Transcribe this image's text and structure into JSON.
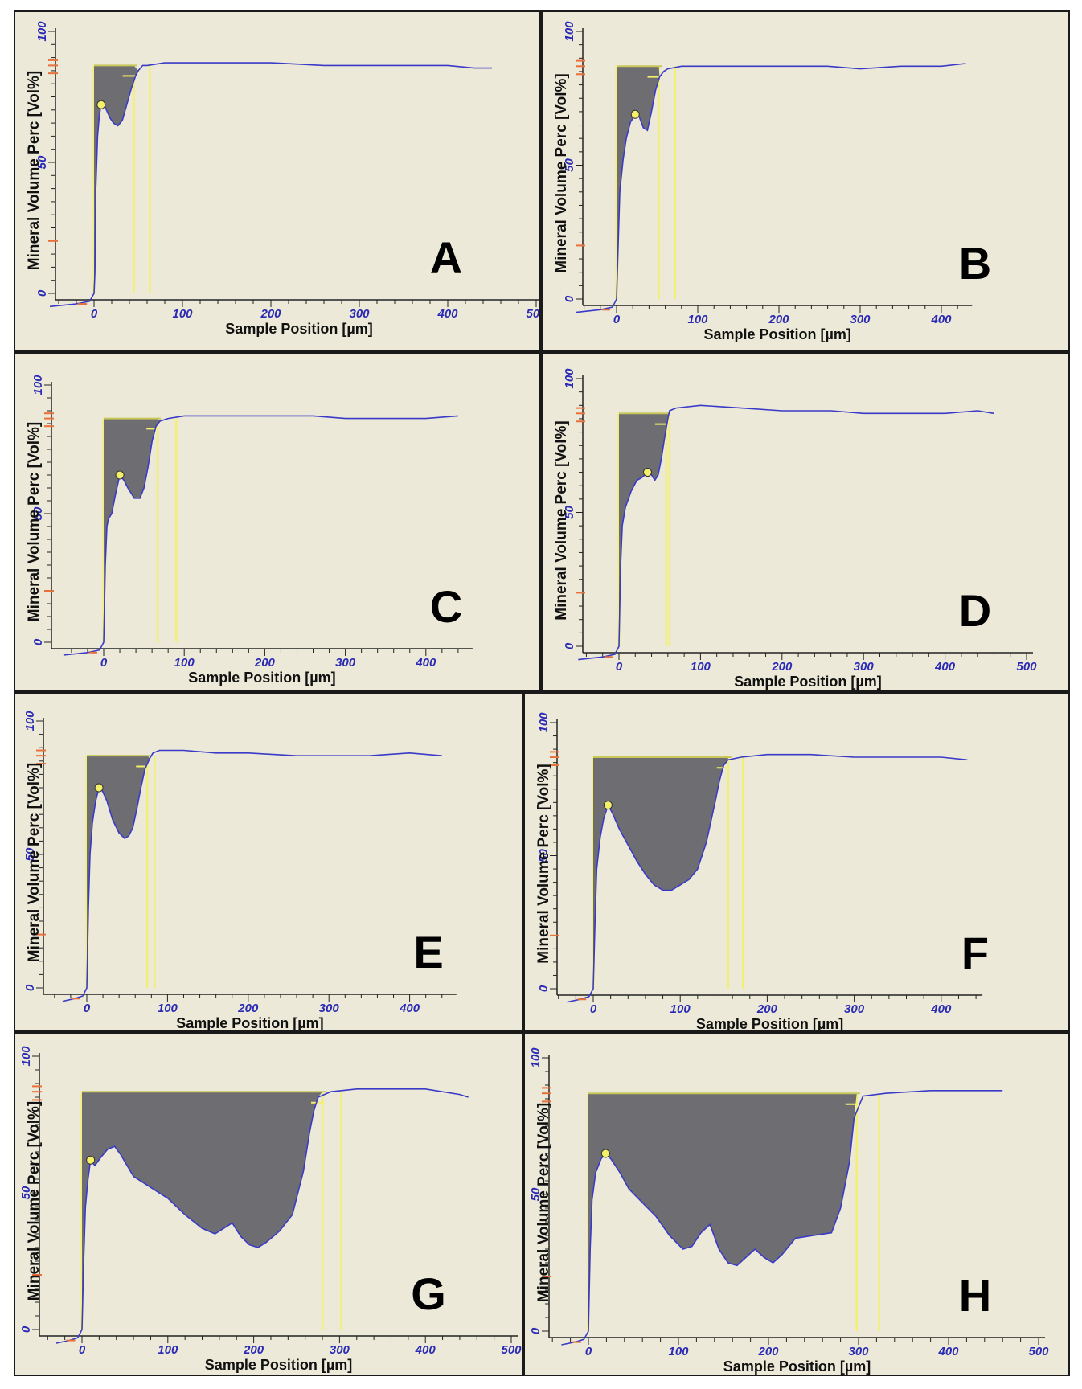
{
  "figure": {
    "colors": {
      "background": "#ece9d8",
      "curve": "#3a3ac8",
      "fill": "#6e6e72",
      "marker": "#f4f06a",
      "orange": "#e8703a",
      "axis": "#222222",
      "tick_text": "#2a2ab5"
    }
  },
  "chart_data": [
    {
      "type": "line",
      "panel_label": "A",
      "xlabel": "Sample Position [µm]",
      "ylabel": "Mineral Volume Perc [Vol%]",
      "xlim": [
        -50,
        500
      ],
      "ylim": [
        0,
        100
      ],
      "xticks": [
        "0",
        "100",
        "200",
        "300",
        "400",
        "500"
      ],
      "yticks": [
        "0",
        "50",
        "100"
      ],
      "sound_level": 87,
      "peak": {
        "x": 8,
        "y": 72
      },
      "series": [
        {
          "name": "mineral-volume",
          "x": [
            -50,
            -20,
            -5,
            0,
            1,
            2,
            4,
            6,
            8,
            10,
            14,
            18,
            22,
            27,
            32,
            37,
            42,
            47,
            50,
            55,
            60,
            80,
            120,
            160,
            200,
            260,
            300,
            350,
            400,
            430,
            450
          ],
          "y": [
            -5,
            -4,
            -3,
            0,
            8,
            40,
            60,
            68,
            72,
            73,
            70,
            67,
            65,
            64,
            66,
            72,
            78,
            83,
            85,
            87,
            87,
            88,
            88,
            88,
            88,
            87,
            87,
            87,
            87,
            86,
            86
          ]
        }
      ],
      "reference_lines_x": [
        0,
        45,
        63
      ]
    },
    {
      "type": "line",
      "panel_label": "B",
      "xlabel": "Sample Position [µm]",
      "ylabel": "Mineral Volume Perc [Vol%]",
      "xlim": [
        -50,
        430
      ],
      "ylim": [
        0,
        100
      ],
      "xticks": [
        "0",
        "100",
        "200",
        "300",
        "400"
      ],
      "yticks": [
        "0",
        "50",
        "100"
      ],
      "sound_level": 87,
      "peak": {
        "x": 23,
        "y": 69
      },
      "series": [
        {
          "name": "mineral-volume",
          "x": [
            -50,
            -20,
            -5,
            0,
            2,
            4,
            8,
            12,
            17,
            23,
            28,
            33,
            38,
            43,
            48,
            53,
            58,
            63,
            80,
            120,
            160,
            200,
            260,
            300,
            350,
            400,
            430
          ],
          "y": [
            -5,
            -4,
            -3,
            0,
            20,
            40,
            52,
            60,
            66,
            69,
            68,
            64,
            63,
            70,
            78,
            83,
            85,
            86,
            87,
            87,
            87,
            87,
            87,
            86,
            87,
            87,
            88
          ]
        }
      ],
      "reference_lines_x": [
        0,
        52,
        72
      ]
    },
    {
      "type": "line",
      "panel_label": "C",
      "xlabel": "Sample Position [µm]",
      "ylabel": "Mineral Volume Perc [Vol%]",
      "xlim": [
        -50,
        450
      ],
      "ylim": [
        0,
        100
      ],
      "xticks": [
        "0",
        "100",
        "200",
        "300",
        "400"
      ],
      "yticks": [
        "0",
        "50",
        "100"
      ],
      "sound_level": 87,
      "peak": {
        "x": 20,
        "y": 65
      },
      "series": [
        {
          "name": "mineral-volume",
          "x": [
            -50,
            -20,
            -5,
            0,
            2,
            4,
            6,
            10,
            15,
            20,
            25,
            30,
            38,
            45,
            50,
            55,
            60,
            65,
            70,
            80,
            100,
            150,
            200,
            260,
            300,
            350,
            400,
            440
          ],
          "y": [
            -5,
            -4,
            -3,
            0,
            30,
            45,
            48,
            50,
            58,
            65,
            63,
            60,
            56,
            56,
            60,
            68,
            78,
            84,
            86,
            87,
            88,
            88,
            88,
            88,
            87,
            87,
            87,
            88
          ]
        }
      ],
      "reference_lines_x": [
        0,
        67,
        90
      ]
    },
    {
      "type": "line",
      "panel_label": "D",
      "xlabel": "Sample Position [µm]",
      "ylabel": "Mineral Volume Perc [Vol%]",
      "xlim": [
        -50,
        500
      ],
      "ylim": [
        0,
        100
      ],
      "xticks": [
        "0",
        "100",
        "200",
        "300",
        "400",
        "500"
      ],
      "yticks": [
        "0",
        "50",
        "100"
      ],
      "sound_level": 87,
      "peak": {
        "x": 35,
        "y": 65
      },
      "series": [
        {
          "name": "mineral-volume",
          "x": [
            -50,
            -20,
            -5,
            0,
            2,
            4,
            8,
            15,
            22,
            28,
            35,
            40,
            44,
            48,
            52,
            56,
            60,
            62,
            70,
            100,
            150,
            200,
            260,
            300,
            350,
            400,
            440,
            460
          ],
          "y": [
            -5,
            -4,
            -3,
            0,
            30,
            45,
            52,
            58,
            62,
            63,
            65,
            64,
            62,
            64,
            70,
            78,
            85,
            88,
            89,
            90,
            89,
            88,
            88,
            87,
            87,
            87,
            88,
            87
          ]
        }
      ],
      "reference_lines_x": [
        0,
        58,
        62
      ]
    },
    {
      "type": "line",
      "panel_label": "E",
      "xlabel": "Sample Position [µm]",
      "ylabel": "Mineral Volume Perc [Vol%]",
      "xlim": [
        -30,
        450
      ],
      "ylim": [
        0,
        100
      ],
      "xticks": [
        "0",
        "100",
        "200",
        "300",
        "400"
      ],
      "yticks": [
        "0",
        "50",
        "100"
      ],
      "sound_level": 87,
      "peak": {
        "x": 15,
        "y": 75
      },
      "series": [
        {
          "name": "mineral-volume",
          "x": [
            -30,
            -15,
            -5,
            0,
            2,
            4,
            7,
            11,
            15,
            19,
            25,
            32,
            40,
            47,
            52,
            57,
            62,
            67,
            72,
            78,
            82,
            90,
            120,
            160,
            200,
            260,
            300,
            350,
            400,
            440
          ],
          "y": [
            -5,
            -4,
            -3,
            0,
            30,
            50,
            62,
            70,
            75,
            74,
            70,
            63,
            58,
            56,
            57,
            60,
            67,
            75,
            82,
            86,
            88,
            89,
            89,
            88,
            88,
            87,
            87,
            87,
            88,
            87
          ]
        }
      ],
      "reference_lines_x": [
        0,
        75,
        84
      ]
    },
    {
      "type": "line",
      "panel_label": "F",
      "xlabel": "Sample Position [µm]",
      "ylabel": "Mineral Volume Perc [Vol%]",
      "xlim": [
        -30,
        440
      ],
      "ylim": [
        0,
        100
      ],
      "xticks": [
        "0",
        "100",
        "200",
        "300",
        "400"
      ],
      "yticks": [
        "0",
        "50",
        "100"
      ],
      "sound_level": 87,
      "peak": {
        "x": 17,
        "y": 69
      },
      "series": [
        {
          "name": "mineral-volume",
          "x": [
            -30,
            -15,
            -5,
            0,
            2,
            4,
            8,
            12,
            17,
            22,
            30,
            40,
            50,
            60,
            70,
            80,
            90,
            100,
            110,
            120,
            130,
            140,
            145,
            150,
            155,
            170,
            200,
            250,
            300,
            350,
            400,
            430
          ],
          "y": [
            -5,
            -4,
            -3,
            0,
            25,
            45,
            57,
            64,
            69,
            66,
            60,
            54,
            48,
            43,
            39,
            37,
            37,
            39,
            41,
            45,
            55,
            70,
            78,
            84,
            86,
            87,
            88,
            88,
            87,
            87,
            87,
            86
          ]
        }
      ],
      "reference_lines_x": [
        0,
        155,
        172
      ]
    },
    {
      "type": "line",
      "panel_label": "G",
      "xlabel": "Sample Position [µm]",
      "ylabel": "Mineral Volume Perc [Vol%]",
      "xlim": [
        -30,
        500
      ],
      "ylim": [
        0,
        100
      ],
      "xticks": [
        "0",
        "100",
        "200",
        "300",
        "400",
        "500"
      ],
      "yticks": [
        "0",
        "50",
        "100"
      ],
      "sound_level": 87,
      "peak": {
        "x": 10,
        "y": 62
      },
      "series": [
        {
          "name": "mineral-volume",
          "x": [
            -30,
            -15,
            -5,
            0,
            2,
            4,
            7,
            10,
            15,
            22,
            30,
            38,
            45,
            60,
            80,
            100,
            120,
            140,
            155,
            165,
            175,
            185,
            195,
            205,
            215,
            230,
            245,
            258,
            265,
            270,
            275,
            290,
            320,
            360,
            400,
            440,
            450
          ],
          "y": [
            -5,
            -4,
            -3,
            0,
            25,
            45,
            55,
            62,
            60,
            63,
            66,
            67,
            64,
            56,
            52,
            48,
            42,
            37,
            35,
            37,
            39,
            34,
            31,
            30,
            32,
            36,
            42,
            58,
            72,
            80,
            85,
            87,
            88,
            88,
            88,
            86,
            85
          ]
        }
      ],
      "reference_lines_x": [
        0,
        280,
        302
      ]
    },
    {
      "type": "line",
      "panel_label": "H",
      "xlabel": "Sample Position [µm]",
      "ylabel": "Mineral Volume Perc [Vol%]",
      "xlim": [
        -30,
        500
      ],
      "ylim": [
        0,
        100
      ],
      "xticks": [
        "0",
        "100",
        "200",
        "300",
        "400",
        "500"
      ],
      "yticks": [
        "0",
        "50",
        "100"
      ],
      "sound_level": 87,
      "peak": {
        "x": 19,
        "y": 65
      },
      "series": [
        {
          "name": "mineral-volume",
          "x": [
            -30,
            -15,
            -5,
            0,
            2,
            4,
            8,
            14,
            19,
            25,
            35,
            45,
            60,
            75,
            90,
            105,
            115,
            125,
            135,
            145,
            155,
            165,
            175,
            185,
            195,
            205,
            215,
            230,
            250,
            270,
            280,
            290,
            295,
            305,
            330,
            380,
            430,
            460
          ],
          "y": [
            -5,
            -4,
            -3,
            0,
            30,
            48,
            58,
            63,
            65,
            63,
            58,
            52,
            47,
            42,
            35,
            30,
            31,
            36,
            39,
            30,
            25,
            24,
            27,
            30,
            27,
            25,
            28,
            34,
            35,
            36,
            45,
            62,
            78,
            86,
            87,
            88,
            88,
            88
          ]
        }
      ],
      "reference_lines_x": [
        0,
        298,
        323
      ]
    }
  ]
}
